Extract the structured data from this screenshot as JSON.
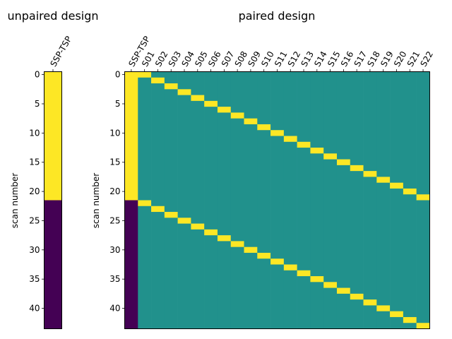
{
  "chart_data": [
    {
      "type": "heatmap",
      "title": "unpaired design",
      "ylabel": "scan number",
      "x_categories": [
        "SSP-TSP"
      ],
      "y_range": [
        0,
        43
      ],
      "y_ticks": [
        0,
        5,
        10,
        15,
        20,
        25,
        30,
        35,
        40
      ],
      "colormap": "viridis",
      "value_colors": {
        "0": "#440154",
        "0.5": "#21918c",
        "1": "#fde725"
      },
      "cells": {
        "description": "rows 0-21 value 1, rows 22-43 value 0",
        "columns": [
          {
            "name": "SSP-TSP",
            "one_rows": [
              0,
              21
            ],
            "zero_rows": [
              22,
              43
            ]
          }
        ]
      }
    },
    {
      "type": "heatmap",
      "title": "paired design",
      "ylabel": "scan number",
      "x_categories": [
        "SSP-TSP",
        "S01",
        "S02",
        "S03",
        "S04",
        "S05",
        "S06",
        "S07",
        "S08",
        "S09",
        "S10",
        "S11",
        "S12",
        "S13",
        "S14",
        "S15",
        "S16",
        "S17",
        "S18",
        "S19",
        "S20",
        "S21",
        "S22"
      ],
      "y_range": [
        0,
        43
      ],
      "y_ticks": [
        0,
        5,
        10,
        15,
        20,
        25,
        30,
        35,
        40
      ],
      "colormap": "viridis",
      "value_colors": {
        "0": "#440154",
        "0.5": "#21918c",
        "1": "#fde725"
      },
      "cells": {
        "description": "SSP-TSP column: rows 0-21 = 1, rows 22-43 = 0; subject column Sk = 1 at rows k-1 and k+21, background 0.5",
        "background_value": 0.5,
        "first_column_one_rows": [
          0,
          21
        ],
        "subject_one_rows": [
          {
            "subject": "S01",
            "rows": [
              0,
              22
            ]
          },
          {
            "subject": "S02",
            "rows": [
              1,
              23
            ]
          },
          {
            "subject": "S03",
            "rows": [
              2,
              24
            ]
          },
          {
            "subject": "S04",
            "rows": [
              3,
              25
            ]
          },
          {
            "subject": "S05",
            "rows": [
              4,
              26
            ]
          },
          {
            "subject": "S06",
            "rows": [
              5,
              27
            ]
          },
          {
            "subject": "S07",
            "rows": [
              6,
              28
            ]
          },
          {
            "subject": "S08",
            "rows": [
              7,
              29
            ]
          },
          {
            "subject": "S09",
            "rows": [
              8,
              30
            ]
          },
          {
            "subject": "S10",
            "rows": [
              9,
              31
            ]
          },
          {
            "subject": "S11",
            "rows": [
              10,
              32
            ]
          },
          {
            "subject": "S12",
            "rows": [
              11,
              33
            ]
          },
          {
            "subject": "S13",
            "rows": [
              12,
              34
            ]
          },
          {
            "subject": "S14",
            "rows": [
              13,
              35
            ]
          },
          {
            "subject": "S15",
            "rows": [
              14,
              36
            ]
          },
          {
            "subject": "S16",
            "rows": [
              15,
              37
            ]
          },
          {
            "subject": "S17",
            "rows": [
              16,
              38
            ]
          },
          {
            "subject": "S18",
            "rows": [
              17,
              39
            ]
          },
          {
            "subject": "S19",
            "rows": [
              18,
              40
            ]
          },
          {
            "subject": "S20",
            "rows": [
              19,
              41
            ]
          },
          {
            "subject": "S21",
            "rows": [
              20,
              42
            ]
          },
          {
            "subject": "S22",
            "rows": [
              21,
              43
            ]
          }
        ]
      }
    }
  ]
}
